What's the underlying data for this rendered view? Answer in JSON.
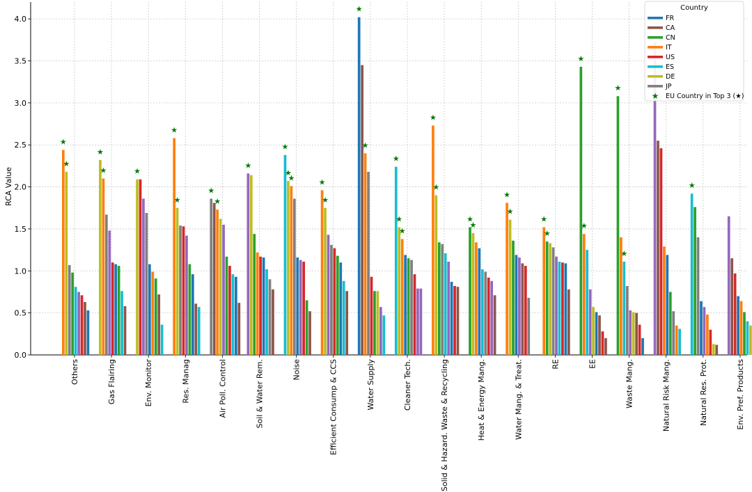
{
  "chart_data": {
    "type": "bar",
    "ylabel": "RCA Value",
    "xlabel": "",
    "ylim": [
      0,
      4.2
    ],
    "yticks": [
      "0.0",
      "0.5",
      "1.0",
      "1.5",
      "2.0",
      "2.5",
      "3.0",
      "3.5",
      "4.0"
    ],
    "grid": true,
    "legend_placement": "top-right",
    "legend_title": "Country",
    "star_marker_label": "EU Country in Top 3 (★)",
    "star_color": "#007a00",
    "palette": [
      "#d62728",
      "#ff7f0e",
      "#bcbd22",
      "#1f77b4",
      "#8c564b",
      "#2ca02c",
      "#9467bd",
      "#17becf",
      "#7f7f7f"
    ],
    "legend": [
      {
        "name": "FR",
        "color": "#1f77b4"
      },
      {
        "name": "CA",
        "color": "#8c564b"
      },
      {
        "name": "CN",
        "color": "#2ca02c"
      },
      {
        "name": "IT",
        "color": "#ff7f0e"
      },
      {
        "name": "US",
        "color": "#d62728"
      },
      {
        "name": "ES",
        "color": "#17becf"
      },
      {
        "name": "DE",
        "color": "#bcbd22"
      },
      {
        "name": "JP",
        "color": "#7f7f7f"
      }
    ],
    "categories": [
      {
        "label": "Others",
        "bars": [
          {
            "c": "#ff7f0e",
            "v": 2.44
          },
          {
            "c": "#bcbd22",
            "v": 2.18
          },
          {
            "c": "#7f7f7f",
            "v": 1.07
          },
          {
            "c": "#2ca02c",
            "v": 0.98
          },
          {
            "c": "#17becf",
            "v": 0.81
          },
          {
            "c": "#9467bd",
            "v": 0.75
          },
          {
            "c": "#d62728",
            "v": 0.71
          },
          {
            "c": "#8c564b",
            "v": 0.63
          },
          {
            "c": "#1f77b4",
            "v": 0.53
          }
        ],
        "stars": [
          0,
          1
        ]
      },
      {
        "label": "Gas Flairing",
        "bars": [
          {
            "c": "#bcbd22",
            "v": 2.32
          },
          {
            "c": "#ff7f0e",
            "v": 2.1
          },
          {
            "c": "#7f7f7f",
            "v": 1.67
          },
          {
            "c": "#9467bd",
            "v": 1.48
          },
          {
            "c": "#d62728",
            "v": 1.1
          },
          {
            "c": "#1f77b4",
            "v": 1.08
          },
          {
            "c": "#2ca02c",
            "v": 1.06
          },
          {
            "c": "#17becf",
            "v": 0.76
          },
          {
            "c": "#8c564b",
            "v": 0.58
          }
        ],
        "stars": [
          0,
          1
        ]
      },
      {
        "label": "Env. Monitor",
        "bars": [
          {
            "c": "#bcbd22",
            "v": 2.09
          },
          {
            "c": "#d62728",
            "v": 2.09
          },
          {
            "c": "#9467bd",
            "v": 1.86
          },
          {
            "c": "#7f7f7f",
            "v": 1.69
          },
          {
            "c": "#1f77b4",
            "v": 1.08
          },
          {
            "c": "#ff7f0e",
            "v": 0.99
          },
          {
            "c": "#2ca02c",
            "v": 0.91
          },
          {
            "c": "#8c564b",
            "v": 0.72
          },
          {
            "c": "#17becf",
            "v": 0.36
          }
        ],
        "stars": [
          0
        ]
      },
      {
        "label": "Res. Manag",
        "bars": [
          {
            "c": "#ff7f0e",
            "v": 2.58
          },
          {
            "c": "#bcbd22",
            "v": 1.75
          },
          {
            "c": "#7f7f7f",
            "v": 1.54
          },
          {
            "c": "#d62728",
            "v": 1.53
          },
          {
            "c": "#9467bd",
            "v": 1.42
          },
          {
            "c": "#2ca02c",
            "v": 1.08
          },
          {
            "c": "#1f77b4",
            "v": 0.96
          },
          {
            "c": "#8c564b",
            "v": 0.61
          },
          {
            "c": "#17becf",
            "v": 0.57
          }
        ],
        "stars": [
          0,
          1
        ]
      },
      {
        "label": "Air Poll. Control",
        "bars": [
          {
            "c": "#7f7f7f",
            "v": 1.86
          },
          {
            "c": "#8c564b",
            "v": 1.81
          },
          {
            "c": "#ff7f0e",
            "v": 1.73
          },
          {
            "c": "#bcbd22",
            "v": 1.62
          },
          {
            "c": "#9467bd",
            "v": 1.55
          },
          {
            "c": "#2ca02c",
            "v": 1.17
          },
          {
            "c": "#d62728",
            "v": 1.06
          },
          {
            "c": "#17becf",
            "v": 0.96
          },
          {
            "c": "#1f77b4",
            "v": 0.93
          },
          {
            "c": "#8c564b",
            "v": 0.62
          }
        ],
        "stars": [
          0,
          2
        ]
      },
      {
        "label": "Soil & Water Rem.",
        "bars": [
          {
            "c": "#9467bd",
            "v": 2.16
          },
          {
            "c": "#bcbd22",
            "v": 2.14
          },
          {
            "c": "#2ca02c",
            "v": 1.44
          },
          {
            "c": "#ff7f0e",
            "v": 1.22
          },
          {
            "c": "#d62728",
            "v": 1.17
          },
          {
            "c": "#1f77b4",
            "v": 1.16
          },
          {
            "c": "#17becf",
            "v": 1.02
          },
          {
            "c": "#7f7f7f",
            "v": 0.9
          },
          {
            "c": "#8c564b",
            "v": 0.78
          }
        ],
        "stars": [
          0
        ]
      },
      {
        "label": "Noise",
        "bars": [
          {
            "c": "#17becf",
            "v": 2.38
          },
          {
            "c": "#bcbd22",
            "v": 2.07
          },
          {
            "c": "#ff7f0e",
            "v": 2.01
          },
          {
            "c": "#7f7f7f",
            "v": 1.86
          },
          {
            "c": "#1f77b4",
            "v": 1.16
          },
          {
            "c": "#9467bd",
            "v": 1.13
          },
          {
            "c": "#d62728",
            "v": 1.11
          },
          {
            "c": "#2ca02c",
            "v": 0.65
          },
          {
            "c": "#8c564b",
            "v": 0.52
          }
        ],
        "stars": [
          0,
          1,
          2
        ]
      },
      {
        "label": "Efficient Consump & CCS",
        "bars": [
          {
            "c": "#ff7f0e",
            "v": 1.96
          },
          {
            "c": "#bcbd22",
            "v": 1.75
          },
          {
            "c": "#9467bd",
            "v": 1.43
          },
          {
            "c": "#7f7f7f",
            "v": 1.31
          },
          {
            "c": "#d62728",
            "v": 1.27
          },
          {
            "c": "#2ca02c",
            "v": 1.18
          },
          {
            "c": "#1f77b4",
            "v": 1.1
          },
          {
            "c": "#17becf",
            "v": 0.88
          },
          {
            "c": "#8c564b",
            "v": 0.76
          }
        ],
        "stars": [
          0,
          1
        ]
      },
      {
        "label": "Water Supply",
        "bars": [
          {
            "c": "#1f77b4",
            "v": 4.02
          },
          {
            "c": "#8c564b",
            "v": 3.45
          },
          {
            "c": "#ff7f0e",
            "v": 2.4
          },
          {
            "c": "#7f7f7f",
            "v": 2.18
          },
          {
            "c": "#d62728",
            "v": 0.93
          },
          {
            "c": "#2ca02c",
            "v": 0.76
          },
          {
            "c": "#bcbd22",
            "v": 0.76
          },
          {
            "c": "#9467bd",
            "v": 0.57
          },
          {
            "c": "#17becf",
            "v": 0.47
          }
        ],
        "stars": [
          0,
          2
        ]
      },
      {
        "label": "Cleaner Tech.",
        "bars": [
          {
            "c": "#17becf",
            "v": 2.24
          },
          {
            "c": "#bcbd22",
            "v": 1.52
          },
          {
            "c": "#ff7f0e",
            "v": 1.38
          },
          {
            "c": "#1f77b4",
            "v": 1.19
          },
          {
            "c": "#2ca02c",
            "v": 1.15
          },
          {
            "c": "#7f7f7f",
            "v": 1.13
          },
          {
            "c": "#d62728",
            "v": 0.96
          },
          {
            "c": "#9467bd",
            "v": 0.79
          },
          {
            "c": "#9467bd",
            "v": 0.79
          }
        ],
        "stars": [
          0,
          1,
          2
        ]
      },
      {
        "label": "Solid & Hazard. Waste & Recycling",
        "bars": [
          {
            "c": "#ff7f0e",
            "v": 2.73
          },
          {
            "c": "#bcbd22",
            "v": 1.9
          },
          {
            "c": "#2ca02c",
            "v": 1.34
          },
          {
            "c": "#7f7f7f",
            "v": 1.32
          },
          {
            "c": "#17becf",
            "v": 1.21
          },
          {
            "c": "#9467bd",
            "v": 1.11
          },
          {
            "c": "#1f77b4",
            "v": 0.87
          },
          {
            "c": "#d62728",
            "v": 0.82
          },
          {
            "c": "#8c564b",
            "v": 0.81
          }
        ],
        "stars": [
          0,
          1
        ]
      },
      {
        "label": "Heat & Energy Mang.",
        "bars": [
          {
            "c": "#2ca02c",
            "v": 1.52
          },
          {
            "c": "#bcbd22",
            "v": 1.45
          },
          {
            "c": "#ff7f0e",
            "v": 1.34
          },
          {
            "c": "#1f77b4",
            "v": 1.27
          },
          {
            "c": "#17becf",
            "v": 1.02
          },
          {
            "c": "#7f7f7f",
            "v": 0.99
          },
          {
            "c": "#d62728",
            "v": 0.92
          },
          {
            "c": "#9467bd",
            "v": 0.88
          },
          {
            "c": "#8c564b",
            "v": 0.71
          }
        ],
        "stars": [
          0,
          1
        ]
      },
      {
        "label": "Water Mang. & Treat.",
        "bars": [
          {
            "c": "#ff7f0e",
            "v": 1.81
          },
          {
            "c": "#bcbd22",
            "v": 1.61
          },
          {
            "c": "#2ca02c",
            "v": 1.36
          },
          {
            "c": "#1f77b4",
            "v": 1.19
          },
          {
            "c": "#9467bd",
            "v": 1.16
          },
          {
            "c": "#8c564b",
            "v": 1.09
          },
          {
            "c": "#d62728",
            "v": 1.06
          },
          {
            "c": "#7f7f7f",
            "v": 0.68
          }
        ],
        "stars": [
          0,
          1
        ]
      },
      {
        "label": "RE",
        "bars": [
          {
            "c": "#ff7f0e",
            "v": 1.52
          },
          {
            "c": "#2ca02c",
            "v": 1.35
          },
          {
            "c": "#bcbd22",
            "v": 1.33
          },
          {
            "c": "#7f7f7f",
            "v": 1.28
          },
          {
            "c": "#9467bd",
            "v": 1.17
          },
          {
            "c": "#17becf",
            "v": 1.11
          },
          {
            "c": "#d62728",
            "v": 1.1
          },
          {
            "c": "#1f77b4",
            "v": 1.09
          },
          {
            "c": "#8c564b",
            "v": 0.78
          }
        ],
        "stars": [
          0,
          1
        ]
      },
      {
        "label": "EE",
        "bars": [
          {
            "c": "#2ca02c",
            "v": 3.43
          },
          {
            "c": "#ff7f0e",
            "v": 1.44
          },
          {
            "c": "#17becf",
            "v": 1.25
          },
          {
            "c": "#9467bd",
            "v": 0.78
          },
          {
            "c": "#bcbd22",
            "v": 0.57
          },
          {
            "c": "#1f77b4",
            "v": 0.51
          },
          {
            "c": "#8c564b",
            "v": 0.47
          },
          {
            "c": "#d62728",
            "v": 0.28
          },
          {
            "c": "#8c564b",
            "v": 0.2
          }
        ],
        "stars": [
          0,
          1
        ]
      },
      {
        "label": "Waste Mang.",
        "bars": [
          {
            "c": "#2ca02c",
            "v": 3.08
          },
          {
            "c": "#ff7f0e",
            "v": 1.4
          },
          {
            "c": "#17becf",
            "v": 1.11
          },
          {
            "c": "#7f7f7f",
            "v": 0.82
          },
          {
            "c": "#9467bd",
            "v": 0.53
          },
          {
            "c": "#bcbd22",
            "v": 0.51
          },
          {
            "c": "#8c564b",
            "v": 0.5
          },
          {
            "c": "#d62728",
            "v": 0.36
          },
          {
            "c": "#1f77b4",
            "v": 0.2
          }
        ],
        "stars": [
          0,
          2
        ]
      },
      {
        "label": "Natural Risk Mang.",
        "bars": [
          {
            "c": "#9467bd",
            "v": 3.72
          },
          {
            "c": "#8c564b",
            "v": 2.55
          },
          {
            "c": "#d62728",
            "v": 2.46
          },
          {
            "c": "#ff7f0e",
            "v": 1.29
          },
          {
            "c": "#1f77b4",
            "v": 1.19
          },
          {
            "c": "#2ca02c",
            "v": 0.75
          },
          {
            "c": "#7f7f7f",
            "v": 0.52
          },
          {
            "c": "#ff7f0e",
            "v": 0.35
          },
          {
            "c": "#17becf",
            "v": 0.31
          }
        ],
        "stars": []
      },
      {
        "label": "Natural Res. Prot.",
        "bars": [
          {
            "c": "#17becf",
            "v": 1.92
          },
          {
            "c": "#2ca02c",
            "v": 1.76
          },
          {
            "c": "#7f7f7f",
            "v": 1.4
          },
          {
            "c": "#1f77b4",
            "v": 0.64
          },
          {
            "c": "#9467bd",
            "v": 0.57
          },
          {
            "c": "#ff7f0e",
            "v": 0.48
          },
          {
            "c": "#d62728",
            "v": 0.3
          },
          {
            "c": "#bcbd22",
            "v": 0.13
          },
          {
            "c": "#8c564b",
            "v": 0.12
          }
        ],
        "stars": [
          0
        ]
      },
      {
        "label": "Env. Pref. Products",
        "bars": [
          {
            "c": "#9467bd",
            "v": 1.65
          },
          {
            "c": "#8c564b",
            "v": 1.15
          },
          {
            "c": "#d62728",
            "v": 0.97
          },
          {
            "c": "#1f77b4",
            "v": 0.7
          },
          {
            "c": "#ff7f0e",
            "v": 0.64
          },
          {
            "c": "#2ca02c",
            "v": 0.51
          },
          {
            "c": "#17becf",
            "v": 0.4
          },
          {
            "c": "#bcbd22",
            "v": 0.35
          },
          {
            "c": "#7f7f7f",
            "v": 0.22
          }
        ],
        "stars": []
      }
    ]
  }
}
